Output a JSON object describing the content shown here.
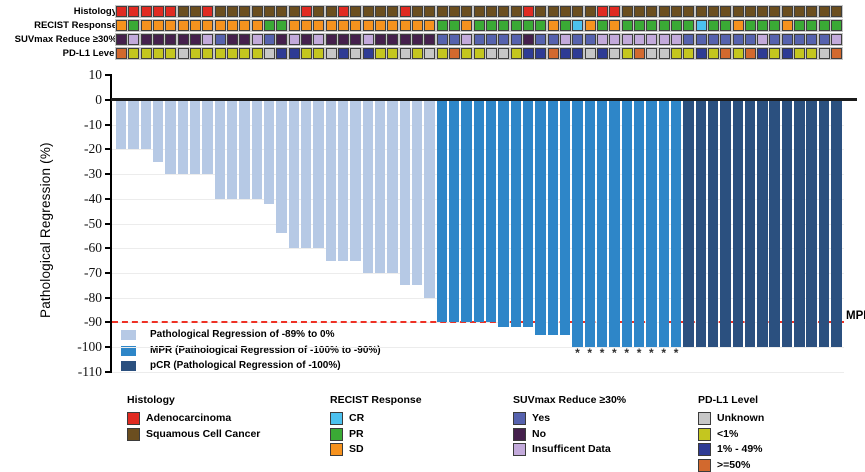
{
  "annotation_tracks": [
    {
      "label": "Histology",
      "codes": [
        "A",
        "A",
        "A",
        "A",
        "A",
        "S",
        "S",
        "A",
        "S",
        "S",
        "S",
        "S",
        "S",
        "S",
        "S",
        "A",
        "S",
        "S",
        "A",
        "S",
        "S",
        "S",
        "S",
        "A",
        "S",
        "S",
        "S",
        "S",
        "S",
        "S",
        "S",
        "S",
        "S",
        "A",
        "S",
        "S",
        "S",
        "S",
        "S",
        "A",
        "A",
        "S",
        "S",
        "S",
        "S",
        "S",
        "S",
        "S",
        "S",
        "S",
        "S",
        "S",
        "S",
        "S",
        "S",
        "S",
        "S",
        "S",
        "S"
      ],
      "palette": {
        "A": "#e02a21",
        "S": "#6b4e1f"
      }
    },
    {
      "label": "RECIST Response",
      "codes": [
        "SD",
        "PR",
        "SD",
        "SD",
        "SD",
        "SD",
        "SD",
        "SD",
        "SD",
        "SD",
        "SD",
        "SD",
        "PR",
        "PR",
        "SD",
        "SD",
        "SD",
        "SD",
        "SD",
        "SD",
        "SD",
        "SD",
        "SD",
        "SD",
        "SD",
        "SD",
        "PR",
        "PR",
        "SD",
        "PR",
        "PR",
        "PR",
        "PR",
        "PR",
        "PR",
        "SD",
        "PR",
        "CR",
        "SD",
        "PR",
        "SD",
        "PR",
        "PR",
        "PR",
        "PR",
        "PR",
        "PR",
        "CR",
        "PR",
        "PR",
        "SD",
        "PR",
        "PR",
        "PR",
        "SD",
        "PR",
        "PR",
        "PR",
        "PR"
      ],
      "palette": {
        "CR": "#4cc1ef",
        "PR": "#3aaa35",
        "SD": "#f6921e"
      }
    },
    {
      "label": "SUVmax Reduce ≥30%",
      "codes": [
        "N",
        "I",
        "N",
        "N",
        "N",
        "N",
        "N",
        "I",
        "Y",
        "N",
        "N",
        "I",
        "Y",
        "N",
        "I",
        "N",
        "I",
        "N",
        "N",
        "N",
        "I",
        "N",
        "N",
        "N",
        "N",
        "N",
        "Y",
        "Y",
        "I",
        "Y",
        "Y",
        "Y",
        "Y",
        "N",
        "Y",
        "Y",
        "I",
        "Y",
        "Y",
        "I",
        "I",
        "I",
        "I",
        "I",
        "I",
        "I",
        "Y",
        "Y",
        "Y",
        "Y",
        "Y",
        "Y",
        "I",
        "Y",
        "Y",
        "Y",
        "Y",
        "Y",
        "I"
      ],
      "palette": {
        "Y": "#5662ae",
        "N": "#45204d",
        "I": "#c3aadb"
      }
    },
    {
      "label": "PD-L1 Level",
      "codes": [
        "H",
        "L",
        "L",
        "L",
        "L",
        "U",
        "L",
        "L",
        "L",
        "L",
        "L",
        "L",
        "U",
        "M",
        "M",
        "L",
        "L",
        "U",
        "M",
        "U",
        "M",
        "L",
        "L",
        "U",
        "L",
        "U",
        "L",
        "H",
        "L",
        "L",
        "U",
        "U",
        "L",
        "M",
        "M",
        "H",
        "M",
        "M",
        "U",
        "M",
        "U",
        "L",
        "H",
        "U",
        "U",
        "L",
        "L",
        "M",
        "L",
        "H",
        "L",
        "H",
        "M",
        "L",
        "M",
        "L",
        "L",
        "U",
        "H"
      ],
      "palette": {
        "U": "#c7c7c7",
        "L": "#c4c61f",
        "M": "#2e3b94",
        "H": "#d2692e"
      }
    }
  ],
  "chart_data": {
    "type": "bar",
    "subtype": "waterfall",
    "ylabel": "Pathological Regression (%)",
    "ylim": [
      -110,
      10
    ],
    "yticks": [
      10,
      0,
      -10,
      -20,
      -30,
      -40,
      -50,
      -60,
      -70,
      -80,
      -90,
      -100,
      -110
    ],
    "grid": true,
    "legend_position": "bottom-left-inside",
    "series": [
      {
        "name": "Pathological Regression (%)",
        "values": [
          -20,
          -20,
          -20,
          -25,
          -30,
          -30,
          -30,
          -30,
          -40,
          -40,
          -40,
          -40,
          -42,
          -54,
          -60,
          -60,
          -60,
          -65,
          -65,
          -65,
          -70,
          -70,
          -70,
          -75,
          -75,
          -80,
          -90,
          -90,
          -90,
          -90,
          -90,
          -92,
          -92,
          -92,
          -95,
          -95,
          -95,
          -100,
          -100,
          -100,
          -100,
          -100,
          -100,
          -100,
          -100,
          -100,
          -100,
          -100,
          -100,
          -100,
          -100,
          -100,
          -100,
          -100,
          -100,
          -100,
          -100,
          -100,
          -100
        ]
      }
    ],
    "bar_categories": [
      "partial",
      "partial",
      "partial",
      "partial",
      "partial",
      "partial",
      "partial",
      "partial",
      "partial",
      "partial",
      "partial",
      "partial",
      "partial",
      "partial",
      "partial",
      "partial",
      "partial",
      "partial",
      "partial",
      "partial",
      "partial",
      "partial",
      "partial",
      "partial",
      "partial",
      "partial",
      "MPR",
      "MPR",
      "MPR",
      "MPR",
      "MPR",
      "MPR",
      "MPR",
      "MPR",
      "MPR",
      "MPR",
      "MPR",
      "MPR",
      "MPR",
      "MPR",
      "MPR",
      "MPR",
      "MPR",
      "MPR",
      "MPR",
      "MPR",
      "pCR",
      "pCR",
      "pCR",
      "pCR",
      "pCR",
      "pCR",
      "pCR",
      "pCR",
      "pCR",
      "pCR",
      "pCR",
      "pCR",
      "pCR"
    ],
    "category_colors": {
      "partial": "#b6c9e5",
      "MPR": "#2e86c8",
      "pCR": "#2b507f"
    },
    "asterisk_marker": "*",
    "asterisk_bar_indices": [
      38,
      39,
      40,
      41,
      42,
      43,
      44,
      45,
      46
    ],
    "reference_line": {
      "y": -90,
      "label": "MPR",
      "color": "#ee3124",
      "style": "dashed"
    },
    "bar_legend": [
      {
        "label": "Pathological Regression of -89% to 0%",
        "color": "#b6c9e5"
      },
      {
        "label": "MPR (Pathological Regression of -100% to -90%)",
        "color": "#2e86c8"
      },
      {
        "label": "pCR (Pathological Regression of -100%)",
        "color": "#2b507f"
      }
    ]
  },
  "legend_groups": [
    {
      "title": "Histology",
      "items": [
        {
          "label": "Adenocarcinoma",
          "color": "#e02a21"
        },
        {
          "label": "Squamous Cell Cancer",
          "color": "#6b4e1f"
        }
      ]
    },
    {
      "title": "RECIST Response",
      "items": [
        {
          "label": "CR",
          "color": "#4cc1ef"
        },
        {
          "label": "PR",
          "color": "#3aaa35"
        },
        {
          "label": "SD",
          "color": "#f6921e"
        }
      ]
    },
    {
      "title": "SUVmax Reduce ≥30%",
      "items": [
        {
          "label": "Yes",
          "color": "#5662ae"
        },
        {
          "label": "No",
          "color": "#45204d"
        },
        {
          "label": "Insufficent Data",
          "color": "#c3aadb"
        }
      ]
    },
    {
      "title": "PD-L1 Level",
      "items": [
        {
          "label": "Unknown",
          "color": "#c7c7c7"
        },
        {
          "label": "<1%",
          "color": "#c4c61f"
        },
        {
          "label": "1% - 49%",
          "color": "#2e3b94"
        },
        {
          "label": ">=50%",
          "color": "#d2692e"
        }
      ]
    }
  ]
}
